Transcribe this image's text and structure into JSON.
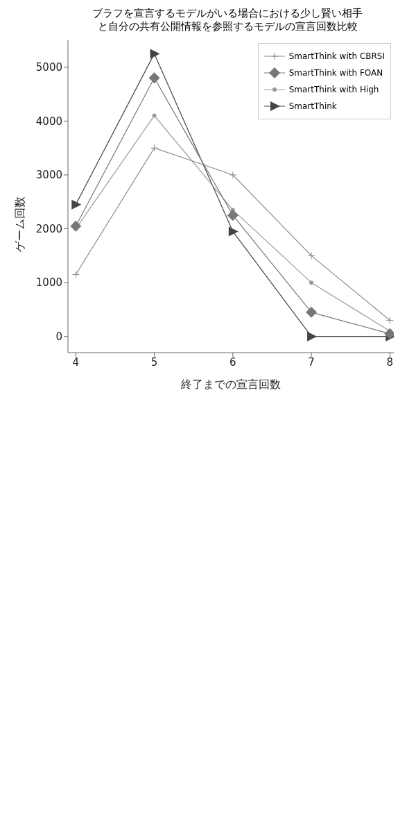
{
  "chart_data": {
    "type": "line",
    "title": "ブラフを宣言するモデルがいる場合における少し賢い相手と自分の共有公開情報を参照するモデルの宣言回数比較",
    "xlabel": "終了までの宣言回数",
    "ylabel": "ゲーム回数",
    "x": [
      4,
      5,
      6,
      7,
      8
    ],
    "xlim": [
      3.9,
      8.05
    ],
    "xticks": [
      4,
      5,
      6,
      7,
      8
    ],
    "ylim": [
      -300,
      5500
    ],
    "yticks": [
      0,
      1000,
      2000,
      3000,
      4000,
      5000
    ],
    "grid": false,
    "legend": "top right",
    "series": [
      {
        "name": "SmartThink with CBRSI",
        "color": "#8a8a8a",
        "marker": "cross",
        "values": [
          1150,
          3500,
          3000,
          1500,
          300
        ]
      },
      {
        "name": "SmartThink with FOAN",
        "color": "#777777",
        "marker": "diamond",
        "values": [
          2050,
          4800,
          2250,
          450,
          50
        ]
      },
      {
        "name": "SmartThink with High",
        "color": "#9a9a9a",
        "marker": "circle",
        "values": [
          2000,
          4100,
          2350,
          1000,
          100
        ]
      },
      {
        "name": "SmartThink",
        "color": "#444444",
        "marker": "triangle",
        "values": [
          2450,
          5250,
          1950,
          0,
          0
        ]
      }
    ]
  }
}
